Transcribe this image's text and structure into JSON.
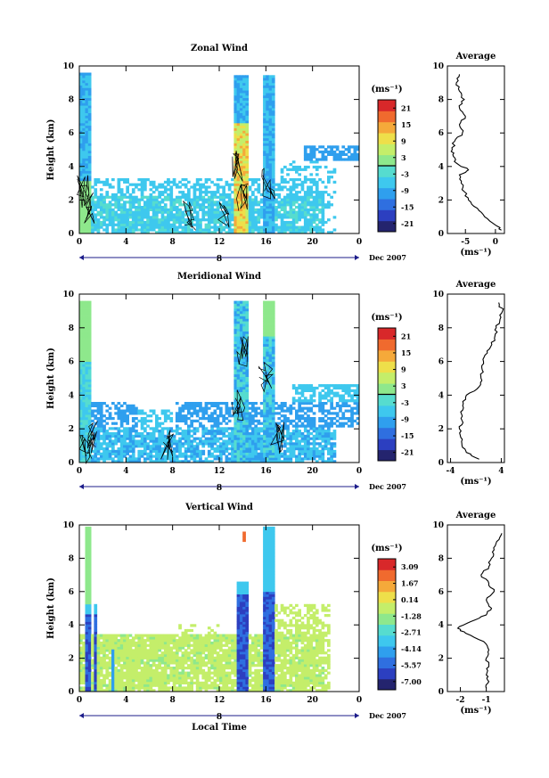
{
  "colors": {
    "colormap": [
      "#24246e",
      "#2c3fc0",
      "#2f6fe0",
      "#2f9fee",
      "#3ec8ee",
      "#56dccf",
      "#8ee88c",
      "#c4ee6a",
      "#eedf4a",
      "#f5a93a",
      "#f06a2e",
      "#d8282a"
    ],
    "axis": "#000000",
    "timebar": "#1c1c8a"
  },
  "chart_data": [
    {
      "type": "heatmap",
      "title": "Zonal Wind",
      "ylabel": "Height (km)",
      "xlim": [
        0,
        24
      ],
      "ylim": [
        0,
        10
      ],
      "x_ticks": [
        "0",
        "4",
        "8",
        "12",
        "16",
        "20",
        "0"
      ],
      "y_ticks": [
        "0",
        "2",
        "4",
        "6",
        "8",
        "10"
      ],
      "date_marker": "8",
      "date_label": "Dec 2007",
      "colorbar": {
        "unit": "(ms⁻¹)",
        "ticks": [
          "21",
          "15",
          "9",
          "3",
          "-3",
          "-9",
          "-15",
          "-21"
        ],
        "zero_line_value": "0"
      },
      "average_profile": {
        "title": "Average",
        "xlabel": "(ms⁻¹)",
        "x_ticks": [
          "-5",
          "0"
        ],
        "xlim": [
          -8,
          1.5
        ],
        "height_km": [
          0.2,
          0.5,
          1.0,
          1.5,
          2.0,
          2.5,
          3.0,
          3.5,
          3.8,
          4.2,
          4.6,
          5.0,
          5.5,
          6.0,
          6.5,
          7.0,
          7.5,
          8.0,
          8.5,
          9.0,
          9.5
        ],
        "values": [
          1.0,
          0.0,
          -1.8,
          -3.0,
          -4.5,
          -5.2,
          -5.7,
          -6.0,
          -4.5,
          -6.5,
          -7.0,
          -7.2,
          -6.8,
          -5.5,
          -6.0,
          -5.0,
          -6.0,
          -5.2,
          -6.0,
          -6.5,
          -6.0
        ]
      }
    },
    {
      "type": "heatmap",
      "title": "Meridional Wind",
      "ylabel": "Height (km)",
      "xlim": [
        0,
        24
      ],
      "ylim": [
        0,
        10
      ],
      "x_ticks": [
        "0",
        "4",
        "8",
        "12",
        "16",
        "20",
        "0"
      ],
      "y_ticks": [
        "0",
        "2",
        "4",
        "6",
        "8",
        "10"
      ],
      "date_marker": "8",
      "date_label": "Dec 2007",
      "colorbar": {
        "unit": "(ms⁻¹)",
        "ticks": [
          "21",
          "15",
          "9",
          "3",
          "-3",
          "-9",
          "-15",
          "-21"
        ],
        "zero_line_value": "0"
      },
      "average_profile": {
        "title": "Average",
        "xlabel": "(ms⁻¹)",
        "x_ticks": [
          "-4",
          "4"
        ],
        "xlim": [
          -4.5,
          4.5
        ],
        "height_km": [
          0.2,
          0.6,
          1.0,
          1.5,
          2.0,
          2.5,
          3.0,
          3.5,
          4.0,
          4.5,
          5.0,
          5.5,
          6.0,
          6.5,
          7.0,
          7.5,
          8.0,
          8.5,
          9.0,
          9.5
        ],
        "values": [
          0.5,
          -1.5,
          -2.2,
          -2.4,
          -2.6,
          -2.2,
          -2.4,
          -2.0,
          -1.5,
          0.5,
          0.8,
          1.0,
          1.2,
          1.8,
          2.5,
          3.0,
          3.2,
          3.8,
          4.2,
          3.6
        ]
      }
    },
    {
      "type": "heatmap",
      "title": "Vertical Wind",
      "ylabel": "Height (km)",
      "xlabel": "Local Time",
      "xlim": [
        0,
        24
      ],
      "ylim": [
        0,
        10
      ],
      "x_ticks": [
        "0",
        "4",
        "8",
        "12",
        "16",
        "20",
        "0"
      ],
      "y_ticks": [
        "0",
        "2",
        "4",
        "6",
        "8",
        "10"
      ],
      "date_marker": "8",
      "date_label": "Dec 2007",
      "colorbar": {
        "unit": "(ms⁻¹)",
        "ticks": [
          "3.09",
          "1.67",
          "0.14",
          "-1.28",
          "-2.71",
          "-4.14",
          "-5.57",
          "-7.00"
        ]
      },
      "average_profile": {
        "title": "Average",
        "xlabel": "(ms⁻¹)",
        "x_ticks": [
          "-2",
          "-1"
        ],
        "xlim": [
          -2.5,
          -0.3
        ],
        "height_km": [
          0.2,
          0.6,
          1.0,
          1.5,
          2.0,
          2.5,
          3.0,
          3.5,
          3.8,
          4.2,
          4.6,
          5.0,
          5.5,
          6.0,
          6.5,
          7.0,
          7.5,
          8.0,
          8.5,
          9.0,
          9.5
        ],
        "values": [
          -1.0,
          -0.9,
          -1.0,
          -0.9,
          -1.0,
          -0.9,
          -1.1,
          -1.8,
          -2.1,
          -1.6,
          -1.0,
          -0.8,
          -1.0,
          -0.7,
          -0.9,
          -1.2,
          -0.9,
          -0.8,
          -0.7,
          -0.6,
          -0.4
        ]
      }
    }
  ]
}
